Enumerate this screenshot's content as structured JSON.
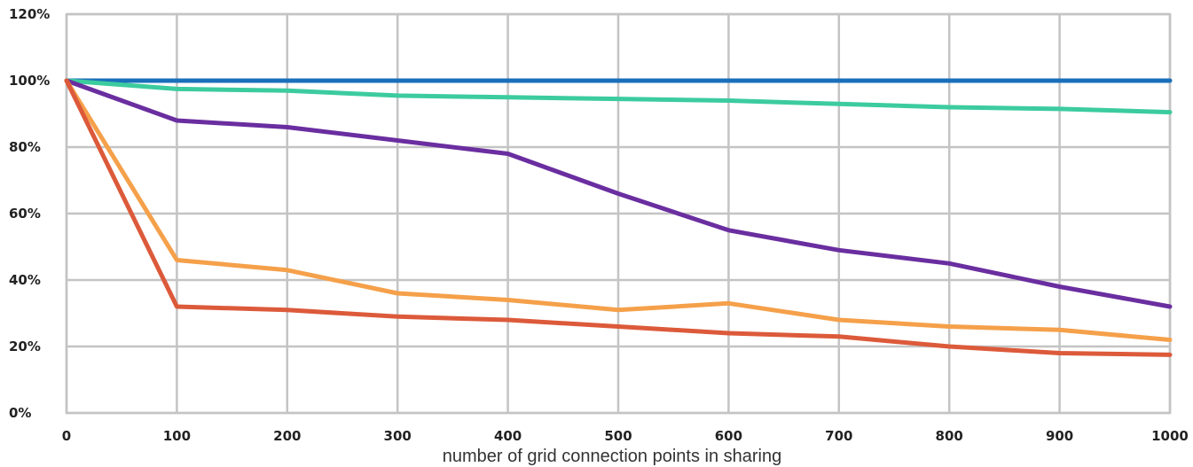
{
  "chart_data": {
    "type": "line",
    "title": "",
    "xlabel": "number of grid connection points in sharing",
    "ylabel": "",
    "xlim": [
      0,
      1000
    ],
    "ylim": [
      0,
      120
    ],
    "x_ticks": [
      "0",
      "100",
      "200",
      "300",
      "400",
      "500",
      "600",
      "700",
      "800",
      "900",
      "1000"
    ],
    "y_ticks": [
      "0%",
      "20%",
      "40%",
      "60%",
      "80%",
      "100%",
      "120%"
    ],
    "x_tick_values": [
      0,
      100,
      200,
      300,
      400,
      500,
      600,
      700,
      800,
      900,
      1000
    ],
    "y_tick_values": [
      0,
      20,
      40,
      60,
      80,
      100,
      120
    ],
    "grid": true,
    "legend": "none",
    "x": [
      0,
      100,
      200,
      300,
      400,
      500,
      600,
      700,
      800,
      900,
      1000
    ],
    "series": [
      {
        "color": "#1a6fba",
        "values": [
          100,
          100,
          100,
          100,
          100,
          100,
          100,
          100,
          100,
          100,
          100
        ]
      },
      {
        "color": "#3ccb9f",
        "values": [
          100,
          97.5,
          97,
          95.5,
          95,
          94.5,
          94,
          93,
          92,
          91.5,
          90.5
        ]
      },
      {
        "color": "#6a2ea0",
        "values": [
          100,
          88,
          86,
          82,
          78,
          66,
          55,
          49,
          45,
          38,
          32
        ]
      },
      {
        "color": "#f5a04a",
        "values": [
          100,
          46,
          43,
          36,
          34,
          31,
          33,
          28,
          26,
          25,
          22
        ]
      },
      {
        "color": "#dc5a3a",
        "values": [
          100,
          32,
          31,
          29,
          28,
          26,
          24,
          23,
          20,
          18,
          17.5
        ]
      }
    ]
  }
}
